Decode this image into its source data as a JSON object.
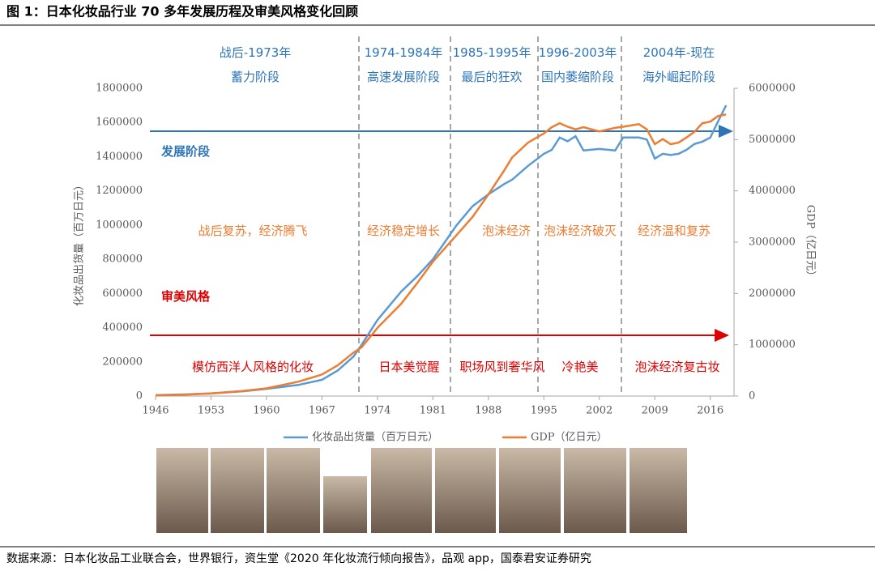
{
  "chart_data": {
    "type": "line",
    "title": "图 1：日本化妆品行业 70 多年发展历程及审美风格变化回顾",
    "x": [
      1946,
      1950,
      1953,
      1957,
      1960,
      1964,
      1967,
      1969,
      1971,
      1972,
      1974,
      1977,
      1979,
      1981,
      1984,
      1986,
      1988,
      1990,
      1991,
      1993,
      1995,
      1996,
      1997,
      1998,
      1999,
      2000,
      2002,
      2004,
      2005,
      2007,
      2008,
      2009,
      2010,
      2011,
      2012,
      2013,
      2014,
      2015,
      2016,
      2017,
      2018
    ],
    "xlim": [
      1946,
      2019
    ],
    "xticks": [
      1946,
      1953,
      1960,
      1967,
      1974,
      1981,
      1988,
      1995,
      2002,
      2009,
      2016
    ],
    "ylim": [
      0,
      1800000
    ],
    "yticks": [
      0,
      200000,
      400000,
      600000,
      800000,
      1000000,
      1200000,
      1400000,
      1600000,
      1800000
    ],
    "y2lim": [
      0,
      6000000
    ],
    "y2ticks": [
      0,
      1000000,
      2000000,
      3000000,
      4000000,
      5000000,
      6000000
    ],
    "ylabel": "化妆品出货量（百万日元）",
    "y2label": "GDP（亿日元）",
    "series": [
      {
        "name": "化妆品出货量（百万日元）",
        "color": "#5b9bd5",
        "values": [
          5000,
          10000,
          15000,
          28000,
          42000,
          65000,
          95000,
          150000,
          232000,
          300000,
          445000,
          611000,
          700000,
          800000,
          1000000,
          1110000,
          1180000,
          1240000,
          1265000,
          1346000,
          1417000,
          1440000,
          1512000,
          1490000,
          1520000,
          1436000,
          1445000,
          1436000,
          1512000,
          1512000,
          1500000,
          1389000,
          1417000,
          1410000,
          1417000,
          1440000,
          1474000,
          1488000,
          1512000,
          1607000,
          1700000
        ]
      },
      {
        "name": "GDP（亿日元）",
        "color": "#ed7d31",
        "axis": "y2",
        "values": [
          10000,
          30000,
          50000,
          100000,
          150000,
          280000,
          420000,
          600000,
          850000,
          950000,
          1330000,
          1800000,
          2200000,
          2620000,
          3140000,
          3490000,
          3930000,
          4400000,
          4650000,
          4940000,
          5120000,
          5240000,
          5320000,
          5250000,
          5200000,
          5240000,
          5160000,
          5230000,
          5250000,
          5300000,
          5200000,
          4910000,
          5010000,
          4910000,
          4940000,
          5040000,
          5150000,
          5320000,
          5350000,
          5460000,
          5490000
        ]
      }
    ],
    "eras": [
      {
        "period": "战后-1973年",
        "stage": "蓄力阶段"
      },
      {
        "period": "1974-1984年",
        "stage": "高速发展阶段"
      },
      {
        "period": "1985-1995年",
        "stage": "最后的狂欢"
      },
      {
        "period": "1996-2003年",
        "stage": "国内萎缩阶段"
      },
      {
        "period": "2004年-现在",
        "stage": "海外崛起阶段"
      }
    ],
    "development_label": "发展阶段",
    "development": [
      "战后复苏，经济腾飞",
      "经济稳定增长",
      "泡沫经济",
      "泡沫经济破灭",
      "经济温和复苏"
    ],
    "aesthetic_label": "审美风格",
    "aesthetic": [
      "模仿西洋人风格的化妆",
      "日本美觉醒",
      "职场风到奢华风",
      "冷艳美",
      "泡沫经济复古妆"
    ]
  },
  "footer": {
    "source": "数据来源：日本化妆品工业联合会，世界银行，资生堂《2020 年化妆流行倾向报告》，品观 app，国泰君安证券研究"
  }
}
